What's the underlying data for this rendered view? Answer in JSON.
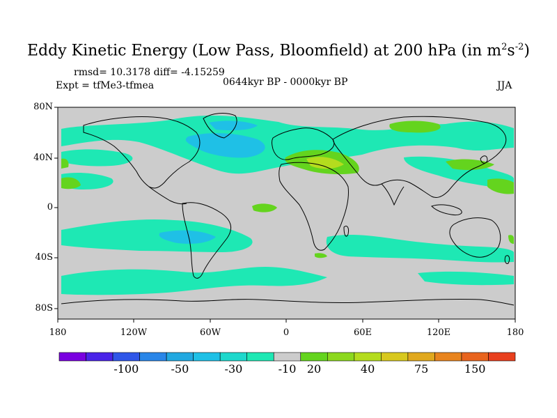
{
  "title": {
    "main": "Eddy Kinetic Energy (Low Pass, Bloomfield) at 200 hPa (in m",
    "sup1": "2",
    "mid": "s",
    "sup2": "-2",
    "end": ")"
  },
  "subtitle": {
    "stats": "rmsd= 10.3178 diff= -4.15259",
    "expt": "Expt = tfMe3-tfmea",
    "period": "0644kyr BP - 0000kyr BP",
    "season": "JJA"
  },
  "axes": {
    "lat_labels": [
      "80N",
      "40N",
      "0",
      "40S",
      "80S"
    ],
    "lon_labels": [
      "180",
      "120W",
      "60W",
      "0",
      "60E",
      "120E",
      "180"
    ]
  },
  "colorbar": {
    "colors": [
      "#7a00e0",
      "#4a24e8",
      "#2f56e8",
      "#2a86e8",
      "#22a8e0",
      "#1fc0e6",
      "#1ed8cc",
      "#1ee8b4",
      "#cccccc",
      "#64d41e",
      "#8cd81e",
      "#b4dc1e",
      "#d8c81e",
      "#e0a81e",
      "#e8841e",
      "#e8641e",
      "#e8401e"
    ],
    "labels": [
      "-100",
      "-50",
      "-30",
      "-10",
      "20",
      "40",
      "75",
      "150"
    ]
  }
}
